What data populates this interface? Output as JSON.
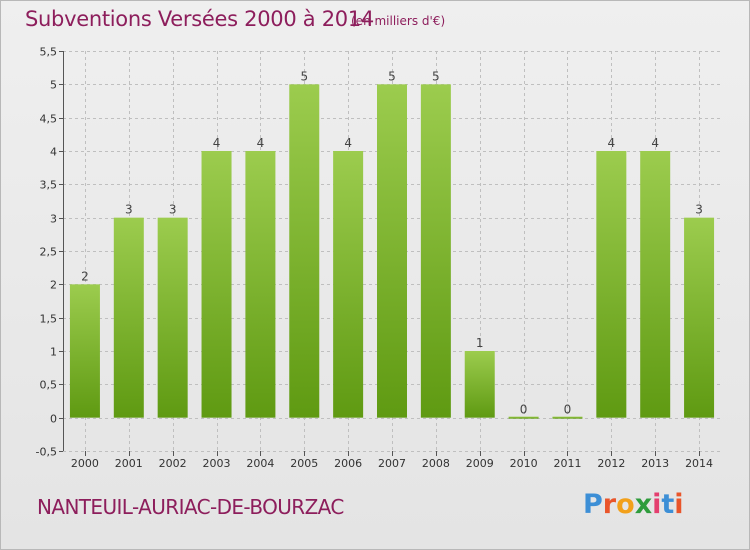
{
  "header": {
    "title": "Subventions Versées 2000 à 2014",
    "subtitle": "(en milliers d'€)"
  },
  "footer": {
    "commune": "NANTEUIL-AURIAC-DE-BOURZAC",
    "logo_text": "Proxiti"
  },
  "colors": {
    "title": "#8d1e5c",
    "bar_top": "#9ccc4e",
    "bar_bottom": "#5f9a12",
    "grid": "#bfbfbf",
    "logo_letters": [
      "#3d8fd6",
      "#e9552a",
      "#f2a01a",
      "#2e9c3c",
      "#e43f6f",
      "#3d8fd6",
      "#e9552a"
    ]
  },
  "chart_data": {
    "type": "bar",
    "title": "Subventions Versées 2000 à 2014",
    "subtitle": "(en milliers d'€)",
    "xlabel": "",
    "ylabel": "",
    "categories": [
      "2000",
      "2001",
      "2002",
      "2003",
      "2004",
      "2005",
      "2006",
      "2007",
      "2008",
      "2009",
      "2010",
      "2011",
      "2012",
      "2013",
      "2014"
    ],
    "values": [
      2,
      3,
      3,
      4,
      4,
      5,
      4,
      5,
      5,
      1,
      0,
      0,
      4,
      4,
      3
    ],
    "data_labels": [
      "2",
      "3",
      "3",
      "4",
      "4",
      "5",
      "4",
      "5",
      "5",
      "1",
      "0",
      "0",
      "4",
      "4",
      "3"
    ],
    "ylim": [
      -0.5,
      5.5
    ],
    "y_ticks": [
      -0.5,
      0,
      0.5,
      1,
      1.5,
      2,
      2.5,
      3,
      3.5,
      4,
      4.5,
      5,
      5.5
    ],
    "y_tick_labels": [
      "-0,5",
      "0",
      "0,5",
      "1",
      "1,5",
      "2",
      "2,5",
      "3",
      "3,5",
      "4",
      "4,5",
      "5",
      "5,5"
    ],
    "grid": true,
    "legend": "none"
  }
}
